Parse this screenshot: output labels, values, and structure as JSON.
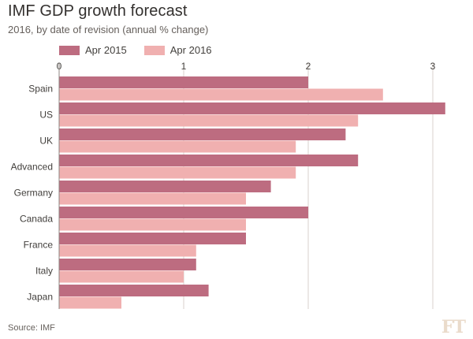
{
  "header": {
    "title": "IMF GDP growth forecast",
    "subtitle": "2016, by date of revision (annual % change)"
  },
  "footer": {
    "source": "Source: IMF",
    "logo": "FT"
  },
  "colors": {
    "series_2015": "#bd6c80",
    "series_2016": "#f0b0b0",
    "grid": "#d8d2cc",
    "text": "#43403d"
  },
  "chart_data": {
    "type": "bar",
    "orientation": "horizontal",
    "title": "IMF GDP growth forecast",
    "subtitle": "2016, by date of revision (annual % change)",
    "categories": [
      "Spain",
      "US",
      "UK",
      "Advanced",
      "Germany",
      "Canada",
      "France",
      "Italy",
      "Japan"
    ],
    "series": [
      {
        "name": "Apr 2015",
        "values": [
          2.0,
          3.1,
          2.3,
          2.4,
          1.7,
          2.0,
          1.5,
          1.1,
          1.2
        ]
      },
      {
        "name": "Apr 2016",
        "values": [
          2.6,
          2.4,
          1.9,
          1.9,
          1.5,
          1.5,
          1.1,
          1.0,
          0.5
        ]
      }
    ],
    "xlim": [
      0,
      3.2
    ],
    "xticks": [
      "0",
      "1",
      "2",
      "3"
    ],
    "xtick_values": [
      0,
      1,
      2,
      3
    ],
    "legend_position": "top-left",
    "grid": true
  }
}
